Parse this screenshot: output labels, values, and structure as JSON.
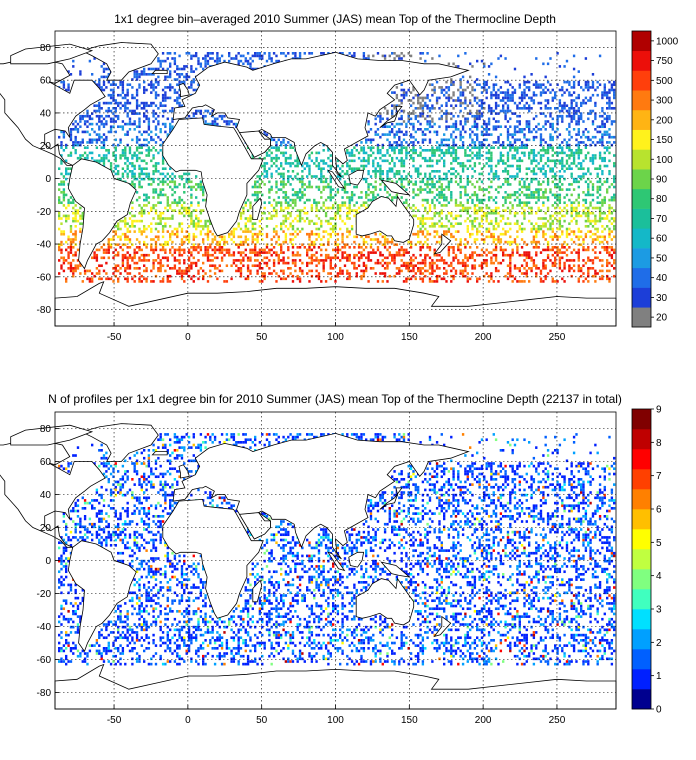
{
  "maps": [
    {
      "id": "mean-depth",
      "title": "1x1 degree bin–averaged 2010 Summer (JAS) mean Top of the Thermocline Depth",
      "x_ticks": [
        -50,
        0,
        50,
        100,
        150,
        200,
        250
      ],
      "y_ticks": [
        80,
        60,
        40,
        20,
        0,
        -20,
        -40,
        -60,
        -80
      ],
      "x_range": [
        -90,
        290
      ],
      "y_range": [
        -90,
        90
      ],
      "colorbar": {
        "labels": [
          "20",
          "30",
          "40",
          "50",
          "60",
          "70",
          "80",
          "90",
          "100",
          "150",
          "200",
          "300",
          "500",
          "750",
          "1000"
        ],
        "colors": [
          "#808080",
          "#1c3ed8",
          "#1f6de8",
          "#1c9be3",
          "#14b8c8",
          "#1bbf9b",
          "#2ec774",
          "#6cd44a",
          "#b8e32e",
          "#fff21c",
          "#ffb414",
          "#ff7a10",
          "#ff3f0c",
          "#ec0f0a",
          "#b00000"
        ]
      }
    },
    {
      "id": "profile-count",
      "title": "N of profiles per 1x1 degree bin for 2010 Summer (JAS) mean Top of the Thermocline Depth  (22137 in total)",
      "x_ticks": [
        -50,
        0,
        50,
        100,
        150,
        200,
        250
      ],
      "y_ticks": [
        80,
        60,
        40,
        20,
        0,
        -20,
        -40,
        -60,
        -80
      ],
      "x_range": [
        -90,
        290
      ],
      "y_range": [
        -90,
        90
      ],
      "colorbar": {
        "labels": [
          "0",
          "1",
          "2",
          "3",
          "4",
          "5",
          "6",
          "7",
          "8",
          "9"
        ],
        "colors": [
          "#00008f",
          "#0020ff",
          "#0060ff",
          "#00a0ff",
          "#00e0ff",
          "#40ffbf",
          "#80ff80",
          "#c0ff40",
          "#ffff00",
          "#ffbf00",
          "#ff8000",
          "#ff4000",
          "#ff0000",
          "#bf0000",
          "#800000"
        ]
      }
    }
  ]
}
